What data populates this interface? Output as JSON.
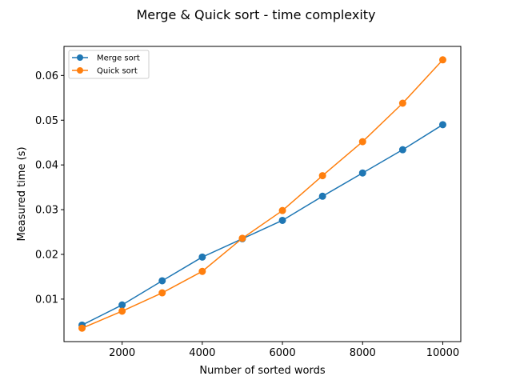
{
  "chart_data": {
    "type": "line",
    "title": "Merge & Quick sort - time complexity",
    "xlabel": "Number of sorted words",
    "ylabel": "Measured time (s)",
    "xlim": [
      550,
      10450
    ],
    "ylim": [
      0.0005,
      0.0665
    ],
    "x": [
      1000,
      2000,
      3000,
      4000,
      5000,
      6000,
      7000,
      8000,
      9000,
      10000
    ],
    "xticks": [
      2000,
      4000,
      6000,
      8000,
      10000
    ],
    "yticks": [
      0.01,
      0.02,
      0.03,
      0.04,
      0.05,
      0.06
    ],
    "xtick_labels": [
      "2000",
      "4000",
      "6000",
      "8000",
      "10000"
    ],
    "ytick_labels": [
      "0.01",
      "0.02",
      "0.03",
      "0.04",
      "0.05",
      "0.06"
    ],
    "grid": false,
    "legend_position": "top-left",
    "series": [
      {
        "name": "Merge sort",
        "color": "#1f77b4",
        "values": [
          0.0042,
          0.0087,
          0.0141,
          0.0194,
          0.0235,
          0.0276,
          0.033,
          0.0382,
          0.0434,
          0.049
        ]
      },
      {
        "name": "Quick sort",
        "color": "#ff7f0e",
        "values": [
          0.0035,
          0.0073,
          0.0114,
          0.0162,
          0.0236,
          0.0298,
          0.0376,
          0.0452,
          0.0538,
          0.0635
        ]
      }
    ]
  }
}
